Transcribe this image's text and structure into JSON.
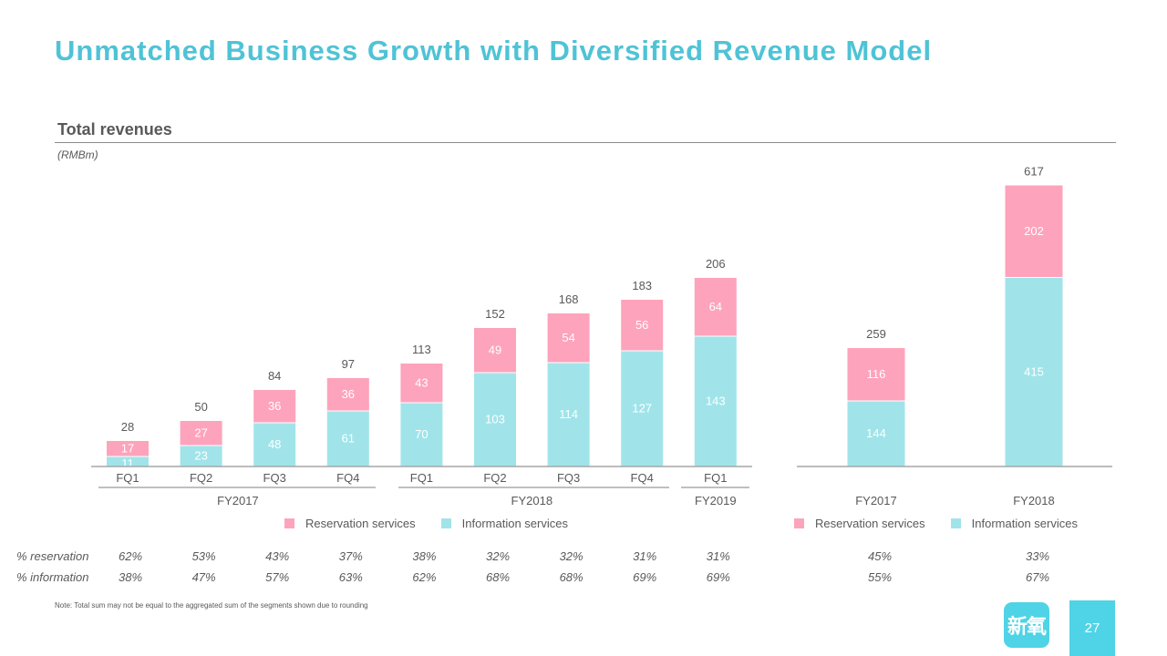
{
  "title": "Unmatched Business Growth with Diversified Revenue Model",
  "section_title": "Total revenues",
  "unit": "(RMBm)",
  "colors": {
    "reservation": "#fea3bc",
    "information": "#a0e4ea",
    "accent": "#4fc3d6"
  },
  "chart_data": [
    {
      "type": "bar",
      "stacked": true,
      "categories": [
        "FQ1",
        "FQ2",
        "FQ3",
        "FQ4",
        "FQ1",
        "FQ2",
        "FQ3",
        "FQ4",
        "FQ1"
      ],
      "groups": [
        {
          "label": "FY2017",
          "categories": [
            0,
            1,
            2,
            3
          ]
        },
        {
          "label": "FY2018",
          "categories": [
            4,
            5,
            6,
            7
          ]
        },
        {
          "label": "FY2019",
          "categories": [
            8
          ]
        }
      ],
      "series": [
        {
          "name": "Information services",
          "values": [
            11,
            23,
            48,
            61,
            70,
            103,
            114,
            127,
            143
          ]
        },
        {
          "name": "Reservation services",
          "values": [
            17,
            27,
            36,
            36,
            43,
            49,
            54,
            56,
            64
          ]
        }
      ],
      "totals": [
        28,
        50,
        84,
        97,
        113,
        152,
        168,
        183,
        206
      ],
      "ylim": [
        0,
        220
      ],
      "legend": "bottom-center",
      "grid": false,
      "percentages": {
        "reservation": [
          "62%",
          "53%",
          "43%",
          "37%",
          "38%",
          "32%",
          "32%",
          "31%",
          "31%"
        ],
        "information": [
          "38%",
          "47%",
          "57%",
          "63%",
          "62%",
          "68%",
          "68%",
          "69%",
          "69%"
        ]
      }
    },
    {
      "type": "bar",
      "stacked": true,
      "categories": [
        "FY2017",
        "FY2018"
      ],
      "series": [
        {
          "name": "Information services",
          "values": [
            144,
            415
          ]
        },
        {
          "name": "Reservation services",
          "values": [
            116,
            202
          ]
        }
      ],
      "totals": [
        259,
        617
      ],
      "ylim": [
        0,
        660
      ],
      "legend": "bottom-center",
      "grid": false,
      "percentages": {
        "reservation": [
          "45%",
          "33%"
        ],
        "information": [
          "55%",
          "67%"
        ]
      }
    }
  ],
  "legend": {
    "reservation_label": "Reservation services",
    "information_label": "Information services"
  },
  "row_labels": {
    "reservation": "% reservation",
    "information": "% information"
  },
  "note": "Note: Total sum may not be equal to the aggregated sum of the segments shown due to rounding",
  "logo": {
    "text": "新氧"
  },
  "page_number": "27"
}
